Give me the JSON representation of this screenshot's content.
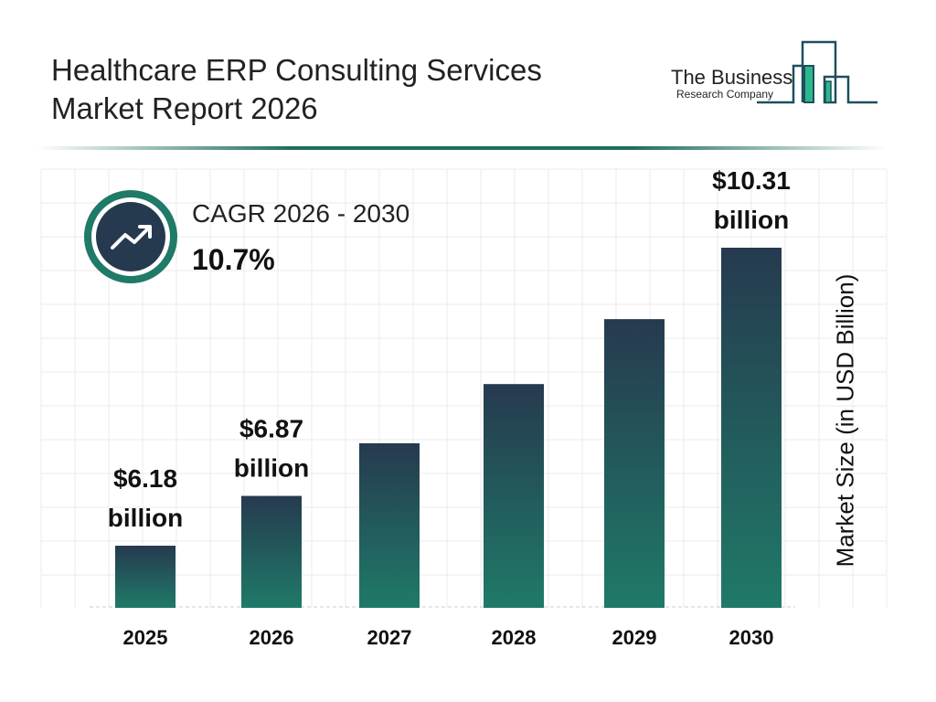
{
  "header": {
    "title_line1": "Healthcare ERP Consulting Services",
    "title_line2": "Market Report 2026"
  },
  "logo": {
    "line1": "The Business",
    "line2": "Research Company",
    "colors": {
      "dark": "#1f4e5f",
      "green": "#2bb88a"
    }
  },
  "cagr": {
    "label": "CAGR 2026 - 2030",
    "value": "10.7%",
    "icon": "trending-up-icon"
  },
  "colors": {
    "bar_top": "#263a4f",
    "bar_bottom": "#1f7a68",
    "accent": "#1f7a68"
  },
  "chart_data": {
    "type": "bar",
    "categories": [
      "2025",
      "2026",
      "2027",
      "2028",
      "2029",
      "2030"
    ],
    "values": [
      6.18,
      6.87,
      7.6,
      8.42,
      9.32,
      10.31
    ],
    "data_labels": [
      {
        "line1": "$6.18",
        "line2": "billion"
      },
      {
        "line1": "$6.87",
        "line2": "billion"
      },
      null,
      null,
      null,
      {
        "line1": "$10.31",
        "line2": "billion"
      }
    ],
    "xlabel": "",
    "ylabel": "Market Size (in USD Billion)",
    "grid": true
  }
}
